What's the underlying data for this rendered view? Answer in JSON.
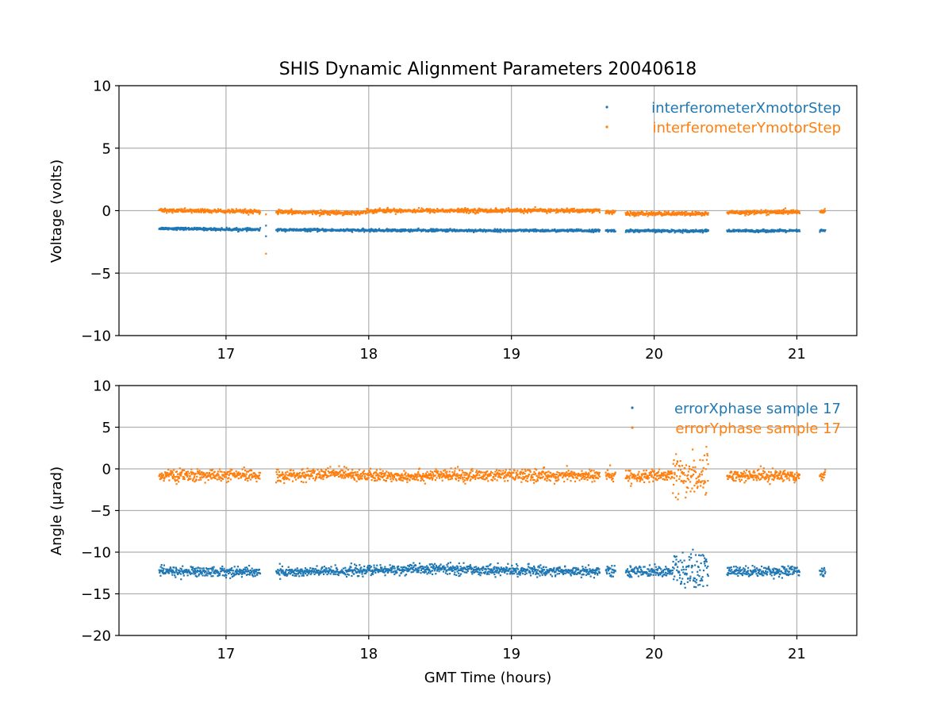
{
  "figure_title": "SHIS Dynamic Alignment Parameters 20040618",
  "colors": {
    "series1": "#1f77b4",
    "series2": "#ff7f0e",
    "grid": "#b0b0b0"
  },
  "chart_data": [
    {
      "type": "scatter",
      "title": "SHIS Dynamic Alignment Parameters 20040618",
      "xlabel": "",
      "ylabel": "Voltage (volts)",
      "xlim": [
        16.25,
        21.42
      ],
      "ylim": [
        -10,
        10
      ],
      "xticks": [
        17,
        18,
        19,
        20,
        21
      ],
      "xtick_labels": [
        "17",
        "18",
        "19",
        "20",
        "21"
      ],
      "yticks": [
        10,
        5,
        0,
        -5,
        -10
      ],
      "ytick_labels": [
        "10",
        "5",
        "0",
        "−5",
        "−10"
      ],
      "grid": true,
      "legend_position": "top-right",
      "x_segments": [
        [
          16.53,
          17.24
        ],
        [
          17.35,
          19.62
        ],
        [
          19.66,
          19.73
        ],
        [
          19.8,
          20.38
        ],
        [
          20.51,
          21.02
        ],
        [
          21.16,
          21.2
        ]
      ],
      "series": [
        {
          "name": "interferometerXmotorStep",
          "color": "#1f77b4",
          "trend_x": [
            16.53,
            17.0,
            17.5,
            18.0,
            18.5,
            19.0,
            19.5,
            20.0,
            20.38,
            20.51,
            21.02,
            21.2
          ],
          "trend_y": [
            -1.42,
            -1.5,
            -1.55,
            -1.58,
            -1.58,
            -1.6,
            -1.6,
            -1.62,
            -1.62,
            -1.62,
            -1.62,
            -1.6
          ],
          "spread": 0.05,
          "outliers": [
            [
              17.28,
              -1.2
            ],
            [
              17.28,
              -2.05
            ]
          ]
        },
        {
          "name": "interferometerYmotorStep",
          "color": "#ff7f0e",
          "trend_x": [
            16.53,
            17.0,
            17.24,
            17.35,
            17.95,
            18.0,
            19.62,
            19.8,
            20.38,
            20.51,
            21.02,
            21.2
          ],
          "trend_y": [
            0.02,
            -0.05,
            -0.1,
            -0.12,
            -0.18,
            0.0,
            0.0,
            -0.25,
            -0.25,
            -0.15,
            -0.1,
            -0.05
          ],
          "spread": 0.08,
          "outliers": [
            [
              17.28,
              -3.45
            ],
            [
              17.28,
              -0.3
            ]
          ]
        }
      ]
    },
    {
      "type": "scatter",
      "title": "",
      "xlabel": "GMT Time (hours)",
      "ylabel": "Angle (μrad)",
      "xlim": [
        16.25,
        21.42
      ],
      "ylim": [
        -20,
        10
      ],
      "xticks": [
        17,
        18,
        19,
        20,
        21
      ],
      "xtick_labels": [
        "17",
        "18",
        "19",
        "20",
        "21"
      ],
      "yticks": [
        10,
        5,
        0,
        -5,
        -10,
        -15,
        -20
      ],
      "ytick_labels": [
        "10",
        "5",
        "0",
        "−5",
        "−10",
        "−15",
        "−20"
      ],
      "grid": true,
      "legend_position": "top-right",
      "x_segments": [
        [
          16.53,
          17.24
        ],
        [
          17.35,
          19.62
        ],
        [
          19.66,
          19.73
        ],
        [
          19.8,
          20.38
        ],
        [
          20.51,
          21.02
        ],
        [
          21.16,
          21.2
        ]
      ],
      "noisy_window": [
        20.13,
        20.38
      ],
      "series": [
        {
          "name": "errorXphase sample 17",
          "color": "#1f77b4",
          "trend_x": [
            16.53,
            17.5,
            18.0,
            18.5,
            19.0,
            19.5,
            20.0,
            20.38,
            20.51,
            21.02,
            21.2
          ],
          "trend_y": [
            -12.3,
            -12.4,
            -12.2,
            -12.0,
            -12.2,
            -12.3,
            -12.3,
            -12.4,
            -12.3,
            -12.3,
            -12.3
          ],
          "spread": 0.3,
          "noisy_spread": 1.2
        },
        {
          "name": "errorYphase sample 17",
          "color": "#ff7f0e",
          "trend_x": [
            16.53,
            17.5,
            17.85,
            18.0,
            18.5,
            19.0,
            19.5,
            20.0,
            20.38,
            20.51,
            21.02,
            21.2
          ],
          "trend_y": [
            -0.8,
            -0.8,
            -0.5,
            -0.9,
            -0.8,
            -0.8,
            -0.8,
            -0.9,
            -0.7,
            -0.8,
            -0.8,
            -0.7
          ],
          "spread": 0.35,
          "noisy_spread": 1.3
        }
      ]
    }
  ]
}
